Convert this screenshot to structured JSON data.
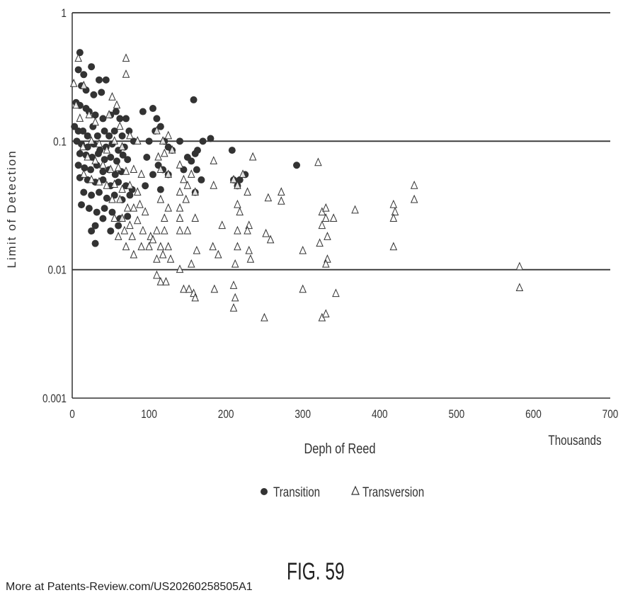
{
  "chart_data": {
    "type": "scatter",
    "title": "",
    "xlabel": "Deph of Reed",
    "ylabel": "Limit of Detection",
    "x_unit_label": "Thousands",
    "xlim": [
      0,
      700
    ],
    "ylim": [
      0.001,
      1
    ],
    "y_scale": "log",
    "x_ticks": [
      "0",
      "100",
      "200",
      "300",
      "400",
      "500",
      "600",
      "700"
    ],
    "y_ticks": [
      "0.001",
      "0.01",
      "0.1",
      "1"
    ],
    "y_tick_values": [
      0.001,
      0.01,
      0.1,
      1
    ],
    "x_tick_values": [
      0,
      100,
      200,
      300,
      400,
      500,
      600,
      700
    ],
    "grid": "horizontal lines at 0.01, 0.1 and 1",
    "legend_position": "bottom-center",
    "series": [
      {
        "name": "Transition",
        "marker": "filled-circle",
        "color": "#333333",
        "points": [
          [
            10,
            0.49
          ],
          [
            8,
            0.36
          ],
          [
            15,
            0.33
          ],
          [
            25,
            0.38
          ],
          [
            35,
            0.3
          ],
          [
            44,
            0.3
          ],
          [
            12,
            0.27
          ],
          [
            18,
            0.25
          ],
          [
            28,
            0.23
          ],
          [
            38,
            0.24
          ],
          [
            5,
            0.2
          ],
          [
            10,
            0.19
          ],
          [
            18,
            0.18
          ],
          [
            22,
            0.17
          ],
          [
            30,
            0.16
          ],
          [
            40,
            0.15
          ],
          [
            50,
            0.16
          ],
          [
            57,
            0.17
          ],
          [
            62,
            0.15
          ],
          [
            70,
            0.15
          ],
          [
            3,
            0.13
          ],
          [
            8,
            0.12
          ],
          [
            14,
            0.12
          ],
          [
            20,
            0.11
          ],
          [
            27,
            0.13
          ],
          [
            33,
            0.11
          ],
          [
            42,
            0.12
          ],
          [
            48,
            0.11
          ],
          [
            55,
            0.12
          ],
          [
            65,
            0.11
          ],
          [
            74,
            0.12
          ],
          [
            80,
            0.1
          ],
          [
            6,
            0.1
          ],
          [
            12,
            0.095
          ],
          [
            20,
            0.09
          ],
          [
            28,
            0.095
          ],
          [
            36,
            0.085
          ],
          [
            44,
            0.09
          ],
          [
            52,
            0.095
          ],
          [
            60,
            0.085
          ],
          [
            68,
            0.09
          ],
          [
            10,
            0.08
          ],
          [
            18,
            0.078
          ],
          [
            26,
            0.075
          ],
          [
            34,
            0.08
          ],
          [
            42,
            0.072
          ],
          [
            50,
            0.075
          ],
          [
            58,
            0.07
          ],
          [
            66,
            0.078
          ],
          [
            72,
            0.072
          ],
          [
            8,
            0.065
          ],
          [
            16,
            0.062
          ],
          [
            24,
            0.06
          ],
          [
            32,
            0.065
          ],
          [
            40,
            0.058
          ],
          [
            48,
            0.06
          ],
          [
            56,
            0.055
          ],
          [
            64,
            0.058
          ],
          [
            10,
            0.052
          ],
          [
            20,
            0.05
          ],
          [
            30,
            0.048
          ],
          [
            40,
            0.05
          ],
          [
            50,
            0.045
          ],
          [
            60,
            0.048
          ],
          [
            70,
            0.045
          ],
          [
            78,
            0.042
          ],
          [
            15,
            0.04
          ],
          [
            25,
            0.038
          ],
          [
            35,
            0.04
          ],
          [
            45,
            0.036
          ],
          [
            55,
            0.038
          ],
          [
            65,
            0.035
          ],
          [
            75,
            0.038
          ],
          [
            12,
            0.032
          ],
          [
            22,
            0.03
          ],
          [
            32,
            0.028
          ],
          [
            42,
            0.03
          ],
          [
            52,
            0.028
          ],
          [
            62,
            0.025
          ],
          [
            72,
            0.026
          ],
          [
            30,
            0.022
          ],
          [
            40,
            0.025
          ],
          [
            25,
            0.02
          ],
          [
            50,
            0.02
          ],
          [
            60,
            0.022
          ],
          [
            30,
            0.016
          ],
          [
            92,
            0.17
          ],
          [
            100,
            0.1
          ],
          [
            105,
            0.18
          ],
          [
            110,
            0.15
          ],
          [
            115,
            0.13
          ],
          [
            108,
            0.12
          ],
          [
            120,
            0.1
          ],
          [
            125,
            0.09
          ],
          [
            130,
            0.085
          ],
          [
            97,
            0.075
          ],
          [
            112,
            0.065
          ],
          [
            118,
            0.06
          ],
          [
            125,
            0.055
          ],
          [
            105,
            0.055
          ],
          [
            95,
            0.045
          ],
          [
            115,
            0.042
          ],
          [
            140,
            0.1
          ],
          [
            150,
            0.075
          ],
          [
            160,
            0.08
          ],
          [
            163,
            0.085
          ],
          [
            170,
            0.1
          ],
          [
            180,
            0.105
          ],
          [
            162,
            0.06
          ],
          [
            168,
            0.05
          ],
          [
            160,
            0.04
          ],
          [
            155,
            0.07
          ],
          [
            158,
            0.21
          ],
          [
            145,
            0.06
          ],
          [
            208,
            0.085
          ],
          [
            210,
            0.05
          ],
          [
            218,
            0.05
          ],
          [
            225,
            0.055
          ],
          [
            215,
            0.045
          ],
          [
            292,
            0.065
          ]
        ]
      },
      {
        "name": "Transversion",
        "marker": "open-triangle",
        "color": "#333333",
        "points": [
          [
            8,
            0.44
          ],
          [
            70,
            0.44
          ],
          [
            70,
            0.33
          ],
          [
            2,
            0.28
          ],
          [
            15,
            0.27
          ],
          [
            5,
            0.19
          ],
          [
            22,
            0.16
          ],
          [
            52,
            0.22
          ],
          [
            58,
            0.19
          ],
          [
            48,
            0.16
          ],
          [
            62,
            0.13
          ],
          [
            10,
            0.15
          ],
          [
            30,
            0.14
          ],
          [
            14,
            0.09
          ],
          [
            25,
            0.1
          ],
          [
            35,
            0.095
          ],
          [
            45,
            0.085
          ],
          [
            55,
            0.1
          ],
          [
            65,
            0.09
          ],
          [
            75,
            0.11
          ],
          [
            85,
            0.1
          ],
          [
            20,
            0.075
          ],
          [
            30,
            0.07
          ],
          [
            40,
            0.065
          ],
          [
            50,
            0.06
          ],
          [
            60,
            0.062
          ],
          [
            70,
            0.058
          ],
          [
            80,
            0.06
          ],
          [
            90,
            0.055
          ],
          [
            15,
            0.055
          ],
          [
            25,
            0.05
          ],
          [
            35,
            0.048
          ],
          [
            45,
            0.045
          ],
          [
            55,
            0.046
          ],
          [
            65,
            0.042
          ],
          [
            75,
            0.045
          ],
          [
            85,
            0.04
          ],
          [
            52,
            0.035
          ],
          [
            62,
            0.035
          ],
          [
            72,
            0.03
          ],
          [
            80,
            0.03
          ],
          [
            88,
            0.032
          ],
          [
            95,
            0.028
          ],
          [
            55,
            0.025
          ],
          [
            65,
            0.025
          ],
          [
            75,
            0.022
          ],
          [
            85,
            0.024
          ],
          [
            92,
            0.02
          ],
          [
            68,
            0.02
          ],
          [
            78,
            0.018
          ],
          [
            60,
            0.018
          ],
          [
            70,
            0.015
          ],
          [
            90,
            0.015
          ],
          [
            100,
            0.015
          ],
          [
            102,
            0.018
          ],
          [
            80,
            0.013
          ],
          [
            110,
            0.12
          ],
          [
            118,
            0.1
          ],
          [
            125,
            0.11
          ],
          [
            112,
            0.075
          ],
          [
            120,
            0.08
          ],
          [
            130,
            0.085
          ],
          [
            115,
            0.06
          ],
          [
            125,
            0.055
          ],
          [
            140,
            0.065
          ],
          [
            145,
            0.05
          ],
          [
            155,
            0.055
          ],
          [
            150,
            0.045
          ],
          [
            140,
            0.04
          ],
          [
            160,
            0.04
          ],
          [
            148,
            0.035
          ],
          [
            115,
            0.035
          ],
          [
            125,
            0.03
          ],
          [
            140,
            0.03
          ],
          [
            140,
            0.025
          ],
          [
            120,
            0.025
          ],
          [
            160,
            0.025
          ],
          [
            110,
            0.02
          ],
          [
            120,
            0.02
          ],
          [
            140,
            0.02
          ],
          [
            150,
            0.02
          ],
          [
            105,
            0.017
          ],
          [
            115,
            0.015
          ],
          [
            125,
            0.015
          ],
          [
            162,
            0.014
          ],
          [
            110,
            0.012
          ],
          [
            118,
            0.013
          ],
          [
            128,
            0.012
          ],
          [
            155,
            0.011
          ],
          [
            140,
            0.01
          ],
          [
            110,
            0.009
          ],
          [
            115,
            0.008
          ],
          [
            122,
            0.008
          ],
          [
            145,
            0.007
          ],
          [
            152,
            0.007
          ],
          [
            158,
            0.0065
          ],
          [
            160,
            0.006
          ],
          [
            184,
            0.07
          ],
          [
            184,
            0.045
          ],
          [
            195,
            0.022
          ],
          [
            183,
            0.015
          ],
          [
            190,
            0.013
          ],
          [
            185,
            0.007
          ],
          [
            210,
            0.05
          ],
          [
            215,
            0.045
          ],
          [
            222,
            0.055
          ],
          [
            228,
            0.04
          ],
          [
            215,
            0.032
          ],
          [
            218,
            0.028
          ],
          [
            230,
            0.022
          ],
          [
            215,
            0.02
          ],
          [
            228,
            0.02
          ],
          [
            215,
            0.015
          ],
          [
            230,
            0.014
          ],
          [
            232,
            0.012
          ],
          [
            212,
            0.011
          ],
          [
            210,
            0.0075
          ],
          [
            212,
            0.006
          ],
          [
            210,
            0.005
          ],
          [
            235,
            0.075
          ],
          [
            255,
            0.036
          ],
          [
            252,
            0.019
          ],
          [
            258,
            0.017
          ],
          [
            250,
            0.0042
          ],
          [
            272,
            0.04
          ],
          [
            272,
            0.034
          ],
          [
            300,
            0.014
          ],
          [
            300,
            0.007
          ],
          [
            320,
            0.068
          ],
          [
            325,
            0.028
          ],
          [
            330,
            0.03
          ],
          [
            325,
            0.022
          ],
          [
            330,
            0.025
          ],
          [
            332,
            0.018
          ],
          [
            322,
            0.016
          ],
          [
            332,
            0.012
          ],
          [
            330,
            0.011
          ],
          [
            340,
            0.025
          ],
          [
            343,
            0.0065
          ],
          [
            325,
            0.0042
          ],
          [
            330,
            0.0045
          ],
          [
            368,
            0.029
          ],
          [
            418,
            0.032
          ],
          [
            420,
            0.028
          ],
          [
            418,
            0.025
          ],
          [
            418,
            0.015
          ],
          [
            445,
            0.045
          ],
          [
            445,
            0.035
          ],
          [
            582,
            0.0105
          ],
          [
            582,
            0.0072
          ]
        ]
      }
    ]
  },
  "legend": {
    "transition_label": "Transition",
    "transversion_label": "Transversion"
  },
  "figure_label": "FIG. 59",
  "source_note": "More at Patents-Review.com/US20260258505A1"
}
